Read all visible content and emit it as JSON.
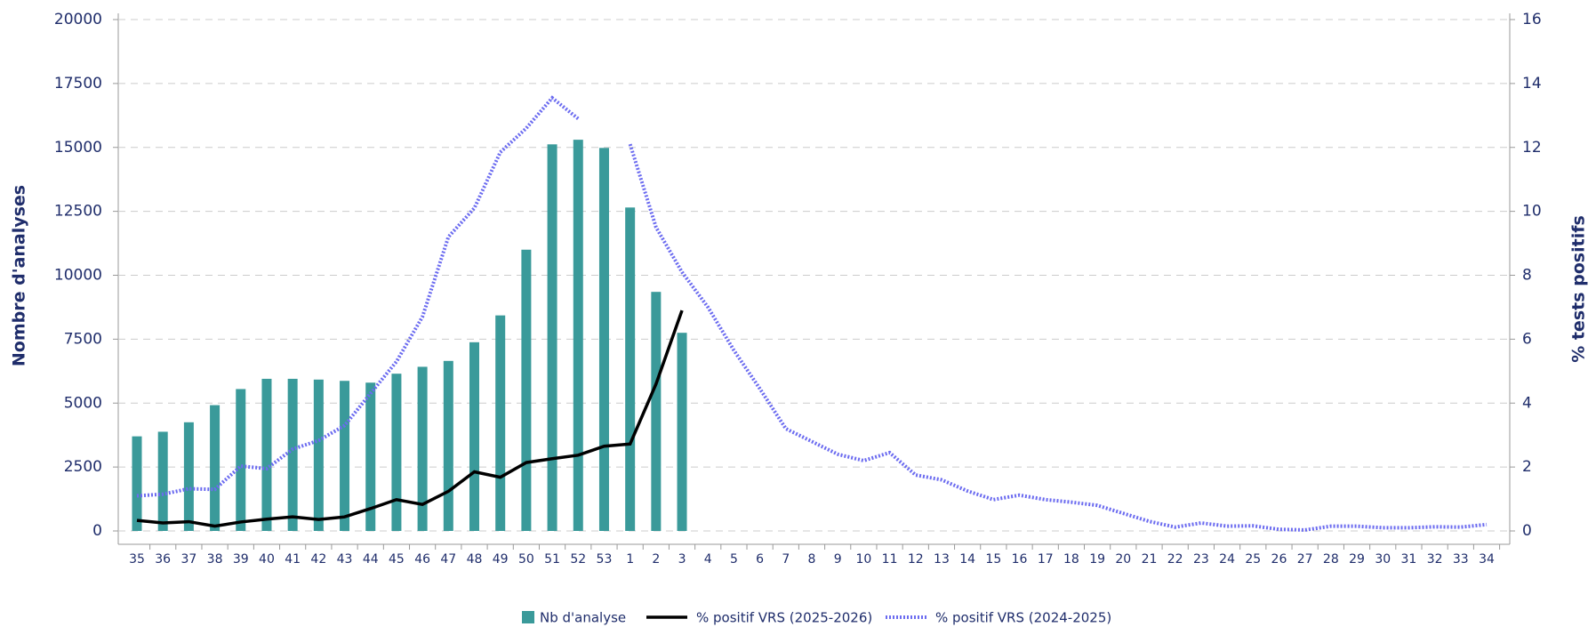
{
  "chart_data": {
    "type": "bar-line",
    "categories": [
      "35",
      "36",
      "37",
      "38",
      "39",
      "40",
      "41",
      "42",
      "43",
      "44",
      "45",
      "46",
      "47",
      "48",
      "49",
      "50",
      "51",
      "52",
      "53",
      "1",
      "2",
      "3",
      "4",
      "5",
      "6",
      "7",
      "8",
      "9",
      "10",
      "11",
      "12",
      "13",
      "14",
      "15",
      "16",
      "17",
      "18",
      "19",
      "20",
      "21",
      "22",
      "23",
      "24",
      "25",
      "26",
      "27",
      "28",
      "29",
      "30",
      "31",
      "32",
      "33",
      "34"
    ],
    "ylabel": "Nombre d'analyses",
    "y2label": "% tests positifs",
    "ylim": [
      0,
      20000
    ],
    "yticks": [
      0,
      2500,
      5000,
      7500,
      10000,
      12500,
      15000,
      17500,
      20000
    ],
    "y2lim": [
      0,
      16
    ],
    "y2ticks": [
      0,
      2,
      4,
      6,
      8,
      10,
      12,
      14,
      16
    ],
    "grid": true,
    "legend": "bottom",
    "series": [
      {
        "name": "Nb d'analyse",
        "type": "bar",
        "color": "#3a9a9a",
        "values": [
          3700,
          3880,
          4250,
          4920,
          5550,
          5950,
          5950,
          5920,
          5870,
          5800,
          6150,
          6420,
          6650,
          7380,
          8430,
          11000,
          15120,
          15300,
          14980,
          12650,
          9350,
          7750,
          null,
          null,
          null,
          null,
          null,
          null,
          null,
          null,
          null,
          null,
          null,
          null,
          null,
          null,
          null,
          null,
          null,
          null,
          null,
          null,
          null,
          null,
          null,
          null,
          null,
          null,
          null,
          null,
          null,
          null,
          null
        ]
      },
      {
        "name": "% positif VRS (2025-2026)",
        "type": "line",
        "axis": "y2",
        "color": "#000000",
        "style": "solid",
        "values": [
          0.33,
          0.25,
          0.29,
          0.15,
          0.28,
          0.37,
          0.44,
          0.36,
          0.44,
          0.7,
          0.98,
          0.83,
          1.24,
          1.85,
          1.68,
          2.14,
          2.26,
          2.37,
          2.65,
          2.72,
          4.6,
          6.9,
          null,
          null,
          null,
          null,
          null,
          null,
          null,
          null,
          null,
          null,
          null,
          null,
          null,
          null,
          null,
          null,
          null,
          null,
          null,
          null,
          null,
          null,
          null,
          null,
          null,
          null,
          null,
          null,
          null,
          null,
          null
        ]
      },
      {
        "name": "% positif VRS (2024-2025)",
        "type": "line",
        "axis": "y2",
        "color": "#6b6bf0",
        "style": "dotted",
        "values": [
          1.1,
          1.15,
          1.32,
          1.3,
          2.03,
          1.95,
          2.56,
          2.83,
          3.3,
          4.3,
          5.3,
          6.7,
          9.2,
          10.1,
          11.85,
          12.6,
          13.55,
          12.9,
          null,
          12.1,
          9.5,
          8.1,
          7.0,
          5.65,
          4.45,
          3.2,
          2.8,
          2.4,
          2.2,
          2.45,
          1.75,
          1.6,
          1.25,
          0.98,
          1.12,
          0.98,
          0.9,
          0.8,
          0.55,
          0.3,
          0.12,
          0.25,
          0.15,
          0.16,
          0.05,
          0.03,
          0.15,
          0.15,
          0.1,
          0.1,
          0.13,
          0.12,
          0.2
        ]
      }
    ]
  }
}
